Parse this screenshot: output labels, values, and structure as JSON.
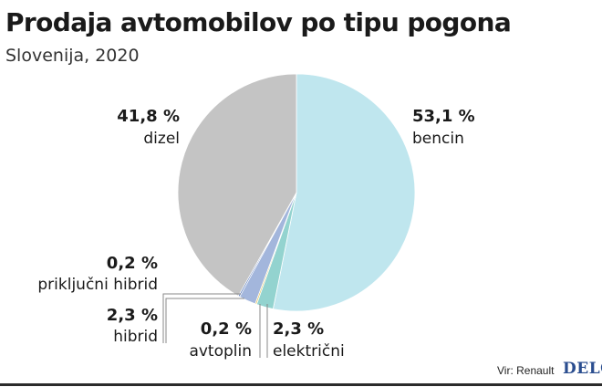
{
  "header": {
    "title": "Prodaja avtomobilov po tipu pogona",
    "subtitle": "Slovenija, 2020"
  },
  "chart_data": {
    "type": "pie",
    "title": "Prodaja avtomobilov po tipu pogona",
    "subtitle": "Slovenija, 2020",
    "slices": [
      {
        "name": "bencin",
        "value": 53.1,
        "label": "53,1 %",
        "color": "#bfe6ee"
      },
      {
        "name": "električni",
        "value": 2.3,
        "label": "2,3 %",
        "color": "#93d3cf"
      },
      {
        "name": "avtoplin",
        "value": 0.2,
        "label": "0,2 %",
        "color": "#e6c457"
      },
      {
        "name": "hibrid",
        "value": 2.3,
        "label": "2,3 %",
        "color": "#a3b6dc"
      },
      {
        "name": "priključni hibrid",
        "value": 0.2,
        "label": "0,2 %",
        "color": "#3f66b3"
      },
      {
        "name": "dizel",
        "value": 41.8,
        "label": "41,8 %",
        "color": "#c4c4c4"
      }
    ]
  },
  "footer": {
    "source": "Vir: Renault",
    "brand": "DELO"
  }
}
